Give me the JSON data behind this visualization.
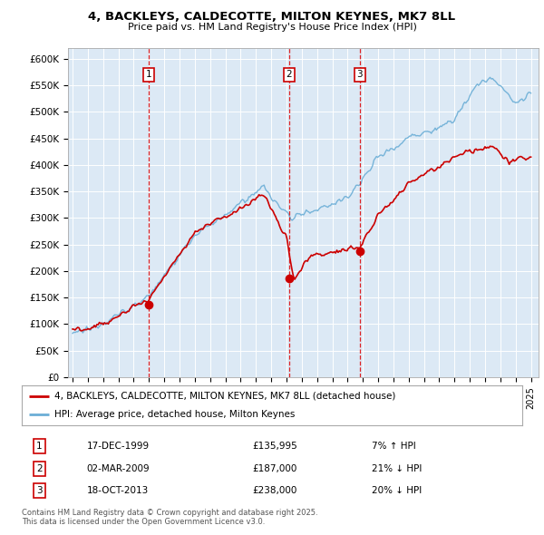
{
  "title": "4, BACKLEYS, CALDECOTTE, MILTON KEYNES, MK7 8LL",
  "subtitle": "Price paid vs. HM Land Registry's House Price Index (HPI)",
  "plot_bg_color": "#dce9f5",
  "ylabel": "",
  "xlabel": "",
  "ylim": [
    0,
    620000
  ],
  "yticks": [
    0,
    50000,
    100000,
    150000,
    200000,
    250000,
    300000,
    350000,
    400000,
    450000,
    500000,
    550000,
    600000
  ],
  "ytick_labels": [
    "£0",
    "£50K",
    "£100K",
    "£150K",
    "£200K",
    "£250K",
    "£300K",
    "£350K",
    "£400K",
    "£450K",
    "£500K",
    "£550K",
    "£600K"
  ],
  "legend_label_red": "4, BACKLEYS, CALDECOTTE, MILTON KEYNES, MK7 8LL (detached house)",
  "legend_label_blue": "HPI: Average price, detached house, Milton Keynes",
  "trans_years": [
    1999.96,
    2009.17,
    2013.8
  ],
  "trans_prices": [
    135995,
    187000,
    238000
  ],
  "trans_labels": [
    "1",
    "2",
    "3"
  ],
  "footer_text": "Contains HM Land Registry data © Crown copyright and database right 2025.\nThis data is licensed under the Open Government Licence v3.0.",
  "table_rows": [
    [
      "1",
      "17-DEC-1999",
      "£135,995",
      "7% ↑ HPI"
    ],
    [
      "2",
      "02-MAR-2009",
      "£187,000",
      "21% ↓ HPI"
    ],
    [
      "3",
      "18-OCT-2013",
      "£238,000",
      "20% ↓ HPI"
    ]
  ],
  "hpi_color": "#6baed6",
  "price_color": "#cc0000",
  "dashed_line_color": "#dd0000",
  "box_color": "#cc0000"
}
